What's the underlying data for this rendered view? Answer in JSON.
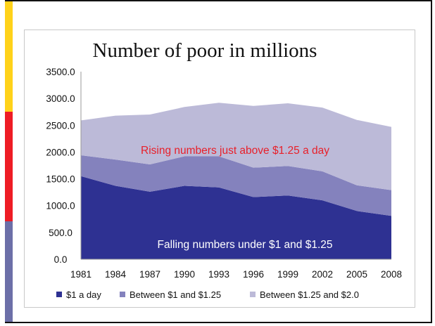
{
  "colors": {
    "stripe_yellow": "#ffd21a",
    "stripe_red": "#ee1c25",
    "stripe_blue": "#6c6fa8",
    "series_1": "#2e3192",
    "series_2": "#8482bd",
    "series_3": "#bcbad8",
    "axis": "#9a9a9a"
  },
  "chart_data": {
    "type": "area",
    "stacked": true,
    "title": "Number of poor in millions",
    "x": [
      "1981",
      "1984",
      "1987",
      "1990",
      "1993",
      "1996",
      "1999",
      "2002",
      "2005",
      "2008"
    ],
    "y_ticks": [
      "0.0",
      "500.0",
      "1000.0",
      "1500.0",
      "2000.0",
      "2500.0",
      "3000.0",
      "3500.0"
    ],
    "ylim": [
      0,
      3500
    ],
    "grid": false,
    "legend_position": "bottom",
    "series": [
      {
        "name": "$1 a day",
        "values": [
          1550,
          1370,
          1260,
          1370,
          1340,
          1160,
          1190,
          1100,
          900,
          810
        ]
      },
      {
        "name": "Between $1 and $1.25",
        "values": [
          390,
          490,
          510,
          550,
          580,
          550,
          550,
          540,
          480,
          480
        ]
      },
      {
        "name": "Between $1.25 and $2.0",
        "values": [
          650,
          820,
          930,
          920,
          1000,
          1150,
          1170,
          1190,
          1220,
          1180
        ]
      }
    ],
    "annotations": [
      {
        "text": "Rising numbers just above $1.25 a day",
        "color": "red"
      },
      {
        "text": "Falling numbers under $1 and $1.25",
        "color": "white"
      }
    ]
  }
}
